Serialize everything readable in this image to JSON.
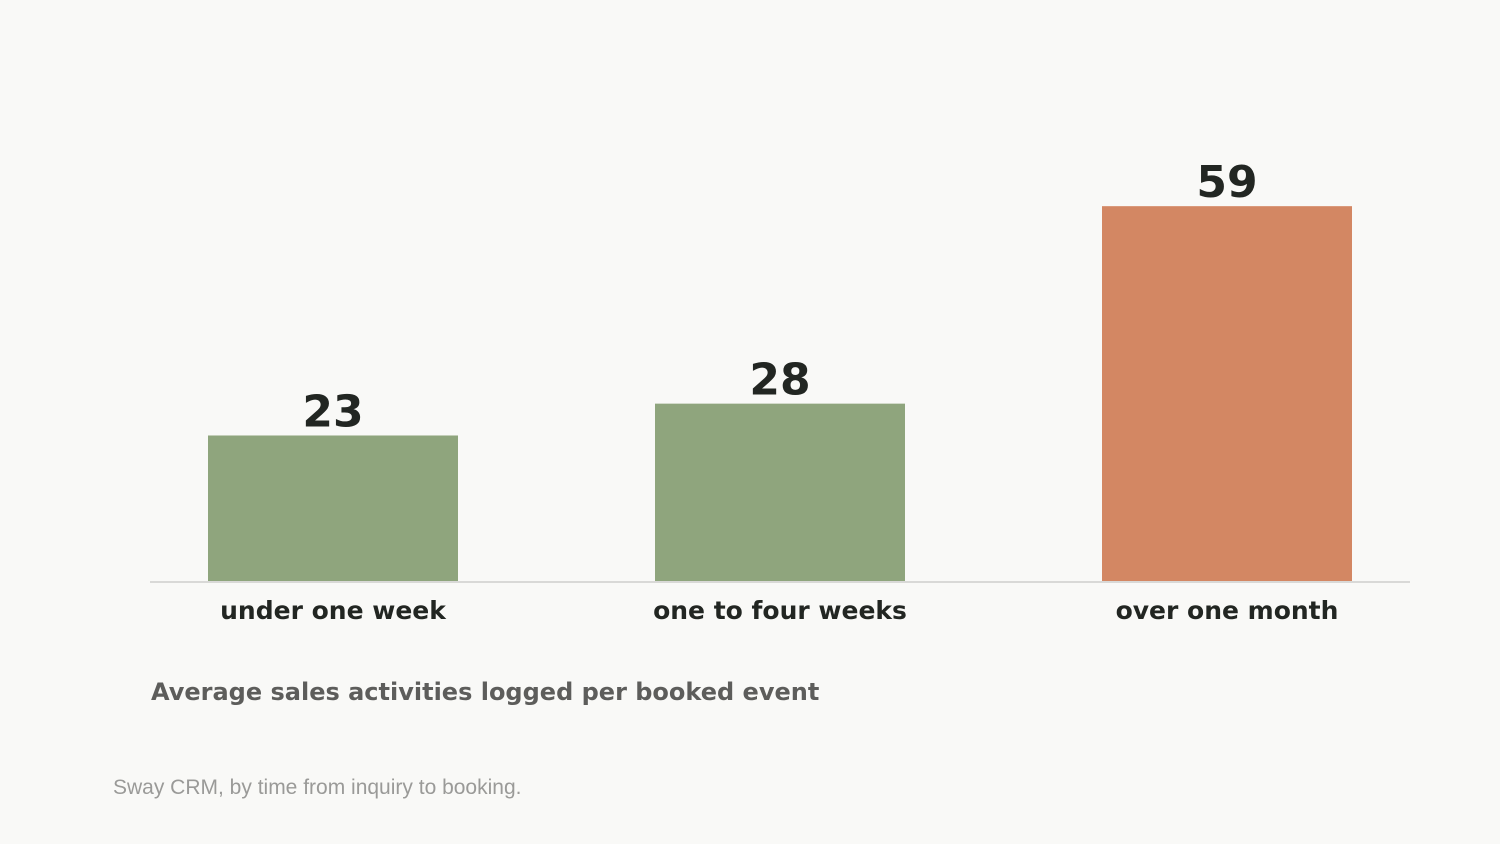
{
  "chart_data": {
    "type": "bar",
    "categories": [
      "under one week",
      "one to four weeks",
      "over one month"
    ],
    "values": [
      23,
      28,
      59
    ],
    "value_labels": [
      "23",
      "28",
      "59"
    ],
    "colors": [
      "#8fa57d",
      "#8fa57d",
      "#d38763"
    ],
    "title": "Average sales activities logged per booked event",
    "xlabel": "",
    "ylabel": "",
    "ylim": [
      0,
      64
    ],
    "grid": false,
    "legend": "none"
  },
  "caption": "Sway CRM, by time from inquiry to booking."
}
